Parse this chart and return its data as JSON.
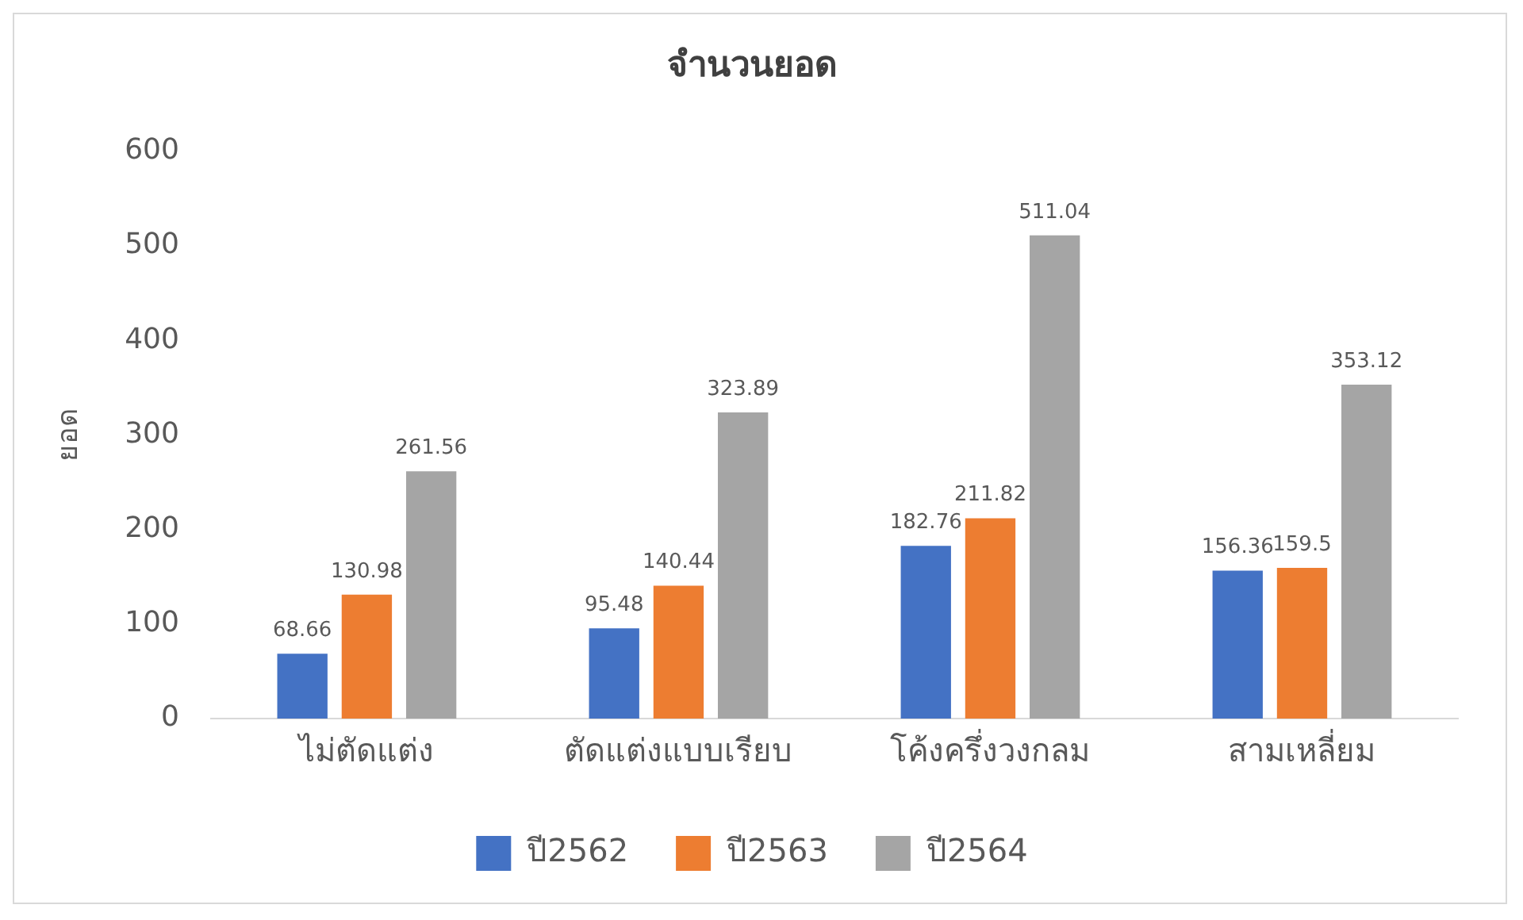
{
  "chart_data": {
    "type": "bar",
    "title": "จำนวนยอด",
    "ylabel": "ยอด",
    "categories": [
      "ไม่ตัดแต่ง",
      "ตัดแต่งแบบเรียบ",
      "โค้งครึ่งวงกลม",
      "สามเหลี่ยม"
    ],
    "series": [
      {
        "name": "ปี2562",
        "color": "#4472c4",
        "values": [
          68.66,
          95.48,
          182.76,
          156.36
        ]
      },
      {
        "name": "ปี2563",
        "color": "#ed7d31",
        "values": [
          130.98,
          140.44,
          211.82,
          159.5
        ]
      },
      {
        "name": "ปี2564",
        "color": "#a5a5a5",
        "values": [
          261.56,
          323.89,
          511.04,
          353.12
        ]
      }
    ],
    "ylim": [
      0,
      600
    ],
    "yticks": [
      0,
      100,
      200,
      300,
      400,
      500,
      600
    ],
    "grid": false,
    "legend": "bottom",
    "data_labels": true
  }
}
